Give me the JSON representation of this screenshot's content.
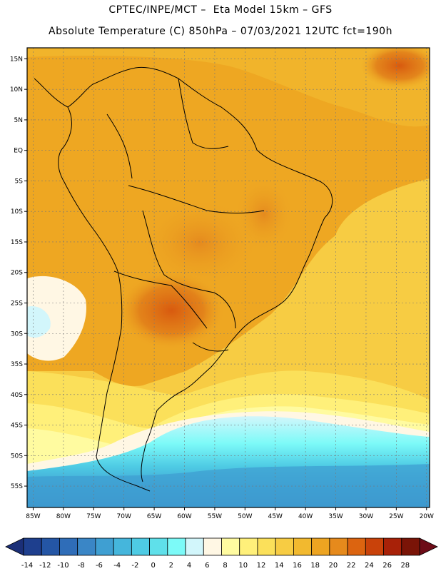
{
  "header": {
    "line1": "CPTEC/INPE/MCT –  Eta Model 15km – GFS",
    "line2": "Absolute Temperature (C) 850hPa – 07/03/2021 12UTC fct=190h"
  },
  "map": {
    "lat_labels": [
      "15N",
      "10N",
      "5N",
      "EQ",
      "5S",
      "10S",
      "15S",
      "20S",
      "25S",
      "30S",
      "35S",
      "40S",
      "45S",
      "50S",
      "55S"
    ],
    "lat_values": [
      15,
      10,
      5,
      0,
      -5,
      -10,
      -15,
      -20,
      -25,
      -30,
      -35,
      -40,
      -45,
      -50,
      -55
    ],
    "lon_labels": [
      "85W",
      "80W",
      "75W",
      "70W",
      "65W",
      "60W",
      "55W",
      "50W",
      "45W",
      "40W",
      "35W",
      "30W",
      "25W",
      "20W"
    ],
    "lon_values": [
      -85,
      -80,
      -75,
      -70,
      -65,
      -60,
      -55,
      -50,
      -45,
      -40,
      -35,
      -30,
      -25,
      -20
    ]
  },
  "colorbar": {
    "labels": [
      "-14",
      "-12",
      "-10",
      "-8",
      "-6",
      "-4",
      "-2",
      "0",
      "2",
      "4",
      "6",
      "8",
      "10",
      "12",
      "14",
      "16",
      "18",
      "20",
      "22",
      "24",
      "26",
      "28"
    ],
    "colors": [
      "#1e3f8e",
      "#2456a5",
      "#2f6db8",
      "#3a86c6",
      "#3f9fd2",
      "#45b6dc",
      "#4ecbe4",
      "#5fe0ea",
      "#7cfaf8",
      "#d2f6fb",
      "#fff7e4",
      "#fffba0",
      "#fff07a",
      "#fbe05a",
      "#f7cc43",
      "#f2b92f",
      "#eda421",
      "#e68a1c",
      "#dc6410",
      "#c9420a",
      "#a82108",
      "#7a1407"
    ],
    "low_color": "#1b2f78",
    "high_color": "#6d0b17"
  }
}
